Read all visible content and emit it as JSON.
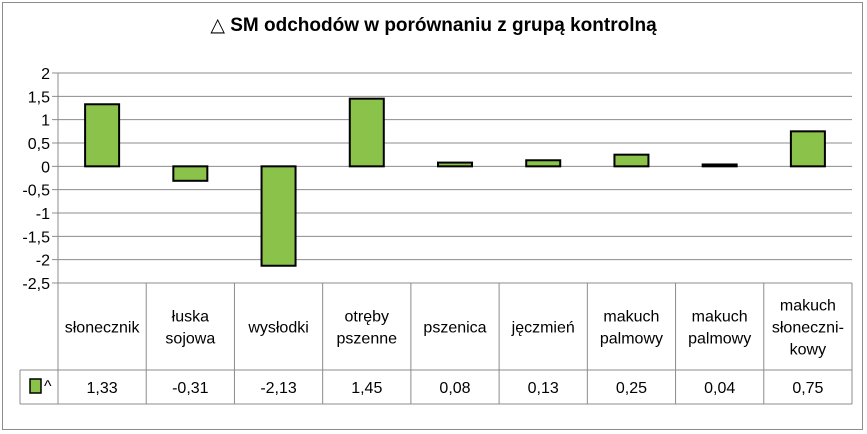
{
  "chart_data": {
    "type": "bar",
    "title": "△ SM odchodów w porównaniu z grupą kontrolną",
    "categories": [
      [
        "słonecznik"
      ],
      [
        "łuska",
        "sojowa"
      ],
      [
        "wysłodki"
      ],
      [
        "otręby",
        "pszenne"
      ],
      [
        "pszenica"
      ],
      [
        "jęczmień"
      ],
      [
        "makuch",
        "palmowy"
      ],
      [
        "makuch",
        "palmowy"
      ],
      [
        "makuch",
        "słoneczni-",
        "kowy"
      ]
    ],
    "series": [
      {
        "name": "^",
        "values": [
          1.33,
          -0.31,
          -2.13,
          1.45,
          0.08,
          0.13,
          0.25,
          0.04,
          0.75
        ],
        "value_labels": [
          "1,33",
          "-0,31",
          "-2,13",
          "1,45",
          "0,08",
          "0,13",
          "0,25",
          "0,04",
          "0,75"
        ],
        "color": "#8bc34a"
      }
    ],
    "ylim": [
      -2.5,
      2
    ],
    "yticks": [
      2,
      1.5,
      1,
      0.5,
      0,
      -0.5,
      -1,
      -1.5,
      -2,
      -2.5
    ],
    "ytick_labels": [
      "2",
      "1,5",
      "1",
      "0,5",
      "0",
      "-0,5",
      "-1",
      "-1,5",
      "-2",
      "-2,5"
    ],
    "grid": true,
    "legend": "data-table-left",
    "gridline_color": "#8c8c8c",
    "bar_outline_color": "#000000"
  }
}
